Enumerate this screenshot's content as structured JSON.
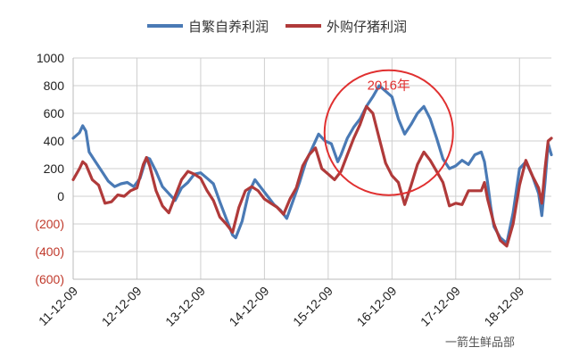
{
  "chart_data": {
    "type": "line",
    "title": "",
    "xlabel": "",
    "ylabel": "",
    "ylim": [
      -600,
      1000
    ],
    "yticks": [
      1000,
      800,
      600,
      400,
      200,
      0,
      -200,
      -400,
      -600
    ],
    "ytick_labels": [
      "1000",
      "800",
      "600",
      "400",
      "200",
      "0",
      "(200)",
      "(400)",
      "(600)"
    ],
    "negative_tick_color": "#c0392b",
    "positive_tick_color": "#222222",
    "x_range": [
      0,
      7.5
    ],
    "xticks": [
      0,
      1,
      2,
      3,
      4,
      5,
      6,
      7
    ],
    "xtick_labels": [
      "11-12-09",
      "12-12-09",
      "13-12-09",
      "14-12-09",
      "15-12-09",
      "16-12-09",
      "17-12-09",
      "18-12-09"
    ],
    "grid": true,
    "legend_position": "top",
    "annotation": {
      "text": "2016年",
      "center_x": 4.95,
      "center_y": 460,
      "color": "#e03030"
    },
    "series": [
      {
        "name": "自繁自养利润",
        "color": "#4a7ab5",
        "points": [
          [
            0.0,
            420
          ],
          [
            0.1,
            460
          ],
          [
            0.15,
            510
          ],
          [
            0.2,
            470
          ],
          [
            0.25,
            320
          ],
          [
            0.35,
            250
          ],
          [
            0.45,
            180
          ],
          [
            0.55,
            110
          ],
          [
            0.65,
            70
          ],
          [
            0.75,
            90
          ],
          [
            0.85,
            100
          ],
          [
            0.95,
            70
          ],
          [
            1.05,
            130
          ],
          [
            1.15,
            280
          ],
          [
            1.2,
            270
          ],
          [
            1.3,
            180
          ],
          [
            1.4,
            70
          ],
          [
            1.5,
            20
          ],
          [
            1.6,
            -30
          ],
          [
            1.7,
            60
          ],
          [
            1.8,
            100
          ],
          [
            1.9,
            160
          ],
          [
            2.0,
            170
          ],
          [
            2.1,
            130
          ],
          [
            2.2,
            90
          ],
          [
            2.3,
            -40
          ],
          [
            2.4,
            -160
          ],
          [
            2.5,
            -280
          ],
          [
            2.55,
            -300
          ],
          [
            2.65,
            -180
          ],
          [
            2.75,
            20
          ],
          [
            2.85,
            120
          ],
          [
            2.95,
            60
          ],
          [
            3.05,
            0
          ],
          [
            3.15,
            -60
          ],
          [
            3.25,
            -100
          ],
          [
            3.35,
            -160
          ],
          [
            3.45,
            -30
          ],
          [
            3.55,
            100
          ],
          [
            3.65,
            250
          ],
          [
            3.75,
            350
          ],
          [
            3.85,
            450
          ],
          [
            3.95,
            400
          ],
          [
            4.05,
            380
          ],
          [
            4.15,
            250
          ],
          [
            4.2,
            300
          ],
          [
            4.3,
            420
          ],
          [
            4.4,
            500
          ],
          [
            4.5,
            560
          ],
          [
            4.6,
            650
          ],
          [
            4.7,
            720
          ],
          [
            4.8,
            800
          ],
          [
            4.9,
            760
          ],
          [
            5.0,
            720
          ],
          [
            5.1,
            560
          ],
          [
            5.2,
            450
          ],
          [
            5.3,
            520
          ],
          [
            5.4,
            600
          ],
          [
            5.5,
            650
          ],
          [
            5.6,
            560
          ],
          [
            5.7,
            420
          ],
          [
            5.8,
            270
          ],
          [
            5.9,
            200
          ],
          [
            6.0,
            220
          ],
          [
            6.1,
            260
          ],
          [
            6.2,
            230
          ],
          [
            6.3,
            300
          ],
          [
            6.4,
            320
          ],
          [
            6.45,
            250
          ],
          [
            6.5,
            100
          ],
          [
            6.55,
            -80
          ],
          [
            6.6,
            -220
          ],
          [
            6.7,
            -300
          ],
          [
            6.8,
            -340
          ],
          [
            6.9,
            -120
          ],
          [
            7.0,
            200
          ],
          [
            7.1,
            250
          ],
          [
            7.2,
            150
          ],
          [
            7.3,
            20
          ],
          [
            7.35,
            -140
          ],
          [
            7.4,
            100
          ],
          [
            7.45,
            380
          ],
          [
            7.5,
            300
          ]
        ]
      },
      {
        "name": "外购仔猪利润",
        "color": "#b03a3a",
        "points": [
          [
            0.0,
            120
          ],
          [
            0.1,
            200
          ],
          [
            0.15,
            250
          ],
          [
            0.2,
            230
          ],
          [
            0.3,
            120
          ],
          [
            0.4,
            80
          ],
          [
            0.5,
            -50
          ],
          [
            0.6,
            -40
          ],
          [
            0.7,
            10
          ],
          [
            0.8,
            0
          ],
          [
            0.9,
            40
          ],
          [
            1.0,
            60
          ],
          [
            1.1,
            230
          ],
          [
            1.15,
            280
          ],
          [
            1.2,
            220
          ],
          [
            1.3,
            40
          ],
          [
            1.4,
            -70
          ],
          [
            1.5,
            -120
          ],
          [
            1.6,
            0
          ],
          [
            1.7,
            120
          ],
          [
            1.8,
            180
          ],
          [
            1.9,
            160
          ],
          [
            2.0,
            130
          ],
          [
            2.1,
            40
          ],
          [
            2.2,
            -30
          ],
          [
            2.3,
            -150
          ],
          [
            2.4,
            -200
          ],
          [
            2.5,
            -260
          ],
          [
            2.6,
            -80
          ],
          [
            2.7,
            40
          ],
          [
            2.8,
            70
          ],
          [
            2.9,
            40
          ],
          [
            3.0,
            -20
          ],
          [
            3.1,
            -50
          ],
          [
            3.2,
            -80
          ],
          [
            3.3,
            -130
          ],
          [
            3.4,
            -20
          ],
          [
            3.5,
            60
          ],
          [
            3.6,
            220
          ],
          [
            3.7,
            300
          ],
          [
            3.8,
            350
          ],
          [
            3.9,
            200
          ],
          [
            4.0,
            160
          ],
          [
            4.1,
            120
          ],
          [
            4.2,
            180
          ],
          [
            4.3,
            300
          ],
          [
            4.4,
            420
          ],
          [
            4.5,
            520
          ],
          [
            4.6,
            650
          ],
          [
            4.7,
            600
          ],
          [
            4.8,
            420
          ],
          [
            4.9,
            240
          ],
          [
            5.0,
            150
          ],
          [
            5.1,
            100
          ],
          [
            5.2,
            -60
          ],
          [
            5.3,
            80
          ],
          [
            5.4,
            230
          ],
          [
            5.5,
            320
          ],
          [
            5.6,
            260
          ],
          [
            5.7,
            180
          ],
          [
            5.8,
            100
          ],
          [
            5.9,
            -70
          ],
          [
            6.0,
            -50
          ],
          [
            6.1,
            -60
          ],
          [
            6.2,
            40
          ],
          [
            6.3,
            40
          ],
          [
            6.4,
            40
          ],
          [
            6.45,
            100
          ],
          [
            6.5,
            -20
          ],
          [
            6.6,
            -200
          ],
          [
            6.7,
            -320
          ],
          [
            6.8,
            -360
          ],
          [
            6.9,
            -200
          ],
          [
            7.0,
            80
          ],
          [
            7.1,
            260
          ],
          [
            7.2,
            150
          ],
          [
            7.3,
            60
          ],
          [
            7.35,
            -50
          ],
          [
            7.4,
            200
          ],
          [
            7.45,
            400
          ],
          [
            7.5,
            420
          ]
        ]
      }
    ]
  },
  "watermark": "一箭生鲜品部"
}
